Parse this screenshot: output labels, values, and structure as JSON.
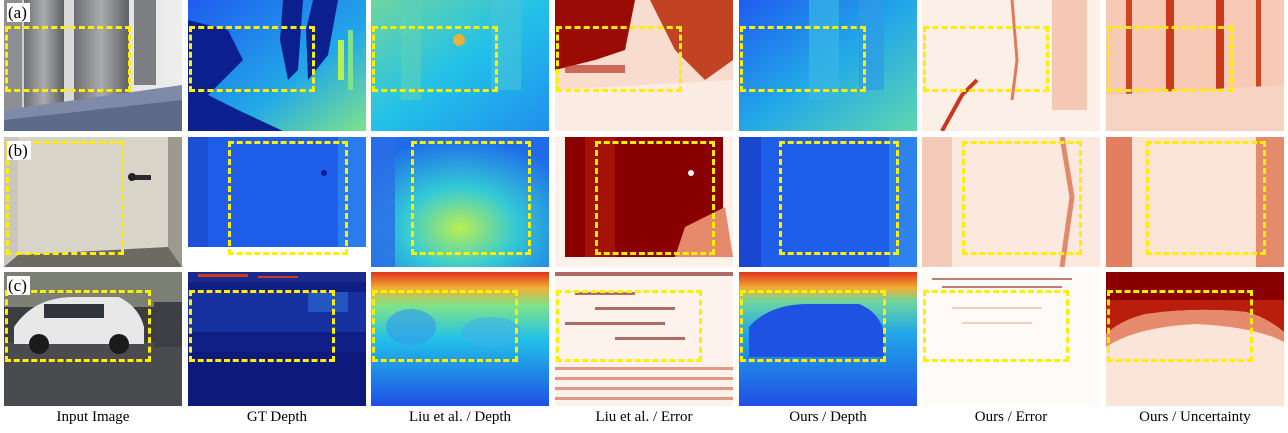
{
  "figure": {
    "rows": [
      {
        "label": "(a)",
        "scene": "restroom-stalls"
      },
      {
        "label": "(b)",
        "scene": "door"
      },
      {
        "label": "(c)",
        "scene": "street-car"
      }
    ],
    "columns": [
      {
        "key": "input",
        "caption": "Input Image"
      },
      {
        "key": "gt",
        "caption": "GT Depth"
      },
      {
        "key": "liu_d",
        "caption": "Liu et al. / Depth"
      },
      {
        "key": "liu_e",
        "caption": "Liu et al. / Error"
      },
      {
        "key": "ours_d",
        "caption": "Ours / Depth"
      },
      {
        "key": "ours_e",
        "caption": "Ours / Error"
      },
      {
        "key": "ours_u",
        "caption": "Ours / Uncertainty"
      }
    ],
    "highlight_color": "#ffee00",
    "colormaps": {
      "depth": [
        "#0b1f8f",
        "#1f5bf0",
        "#22c1e8",
        "#b9ef52"
      ],
      "error": [
        "#ffffff",
        "#f7c7b0",
        "#d03a1c",
        "#7a0000"
      ]
    }
  }
}
